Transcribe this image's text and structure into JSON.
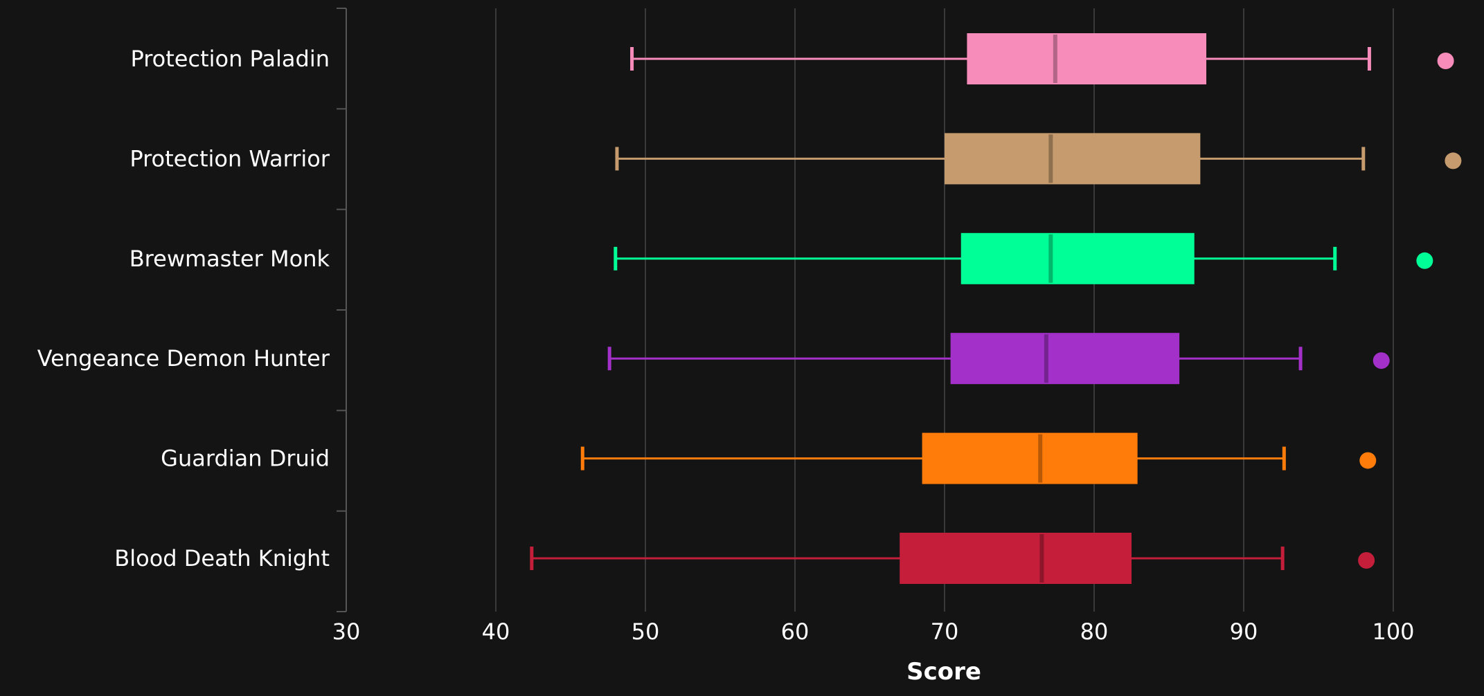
{
  "chart_data": {
    "type": "box",
    "orientation": "horizontal",
    "xlabel": "Score",
    "xlim": [
      30,
      100
    ],
    "xticks": [
      30,
      40,
      50,
      60,
      70,
      80,
      90,
      100
    ],
    "grid": "vertical",
    "legend": "none",
    "series": [
      {
        "category": "Protection Paladin",
        "color": "#f78cbb",
        "min": 49.1,
        "q1": 71.5,
        "median": 77.4,
        "q3": 87.5,
        "max": 98.4,
        "outliers": [
          103.5
        ]
      },
      {
        "category": "Protection Warrior",
        "color": "#c69b6d",
        "min": 48.1,
        "q1": 70.0,
        "median": 77.1,
        "q3": 87.1,
        "max": 98.0,
        "outliers": [
          104.0
        ]
      },
      {
        "category": "Brewmaster Monk",
        "color": "#00ff96",
        "min": 48.0,
        "q1": 71.1,
        "median": 77.1,
        "q3": 86.7,
        "max": 96.1,
        "outliers": [
          102.1
        ]
      },
      {
        "category": "Vengeance Demon Hunter",
        "color": "#a330c9",
        "min": 47.6,
        "q1": 70.4,
        "median": 76.8,
        "q3": 85.7,
        "max": 93.8,
        "outliers": [
          99.2
        ]
      },
      {
        "category": "Guardian Druid",
        "color": "#ff7c0a",
        "min": 45.8,
        "q1": 68.5,
        "median": 76.4,
        "q3": 82.9,
        "max": 92.7,
        "outliers": [
          98.3
        ]
      },
      {
        "category": "Blood Death Knight",
        "color": "#c41e3a",
        "min": 42.4,
        "q1": 67.0,
        "median": 76.5,
        "q3": 82.5,
        "max": 92.6,
        "outliers": [
          98.2
        ]
      }
    ]
  }
}
